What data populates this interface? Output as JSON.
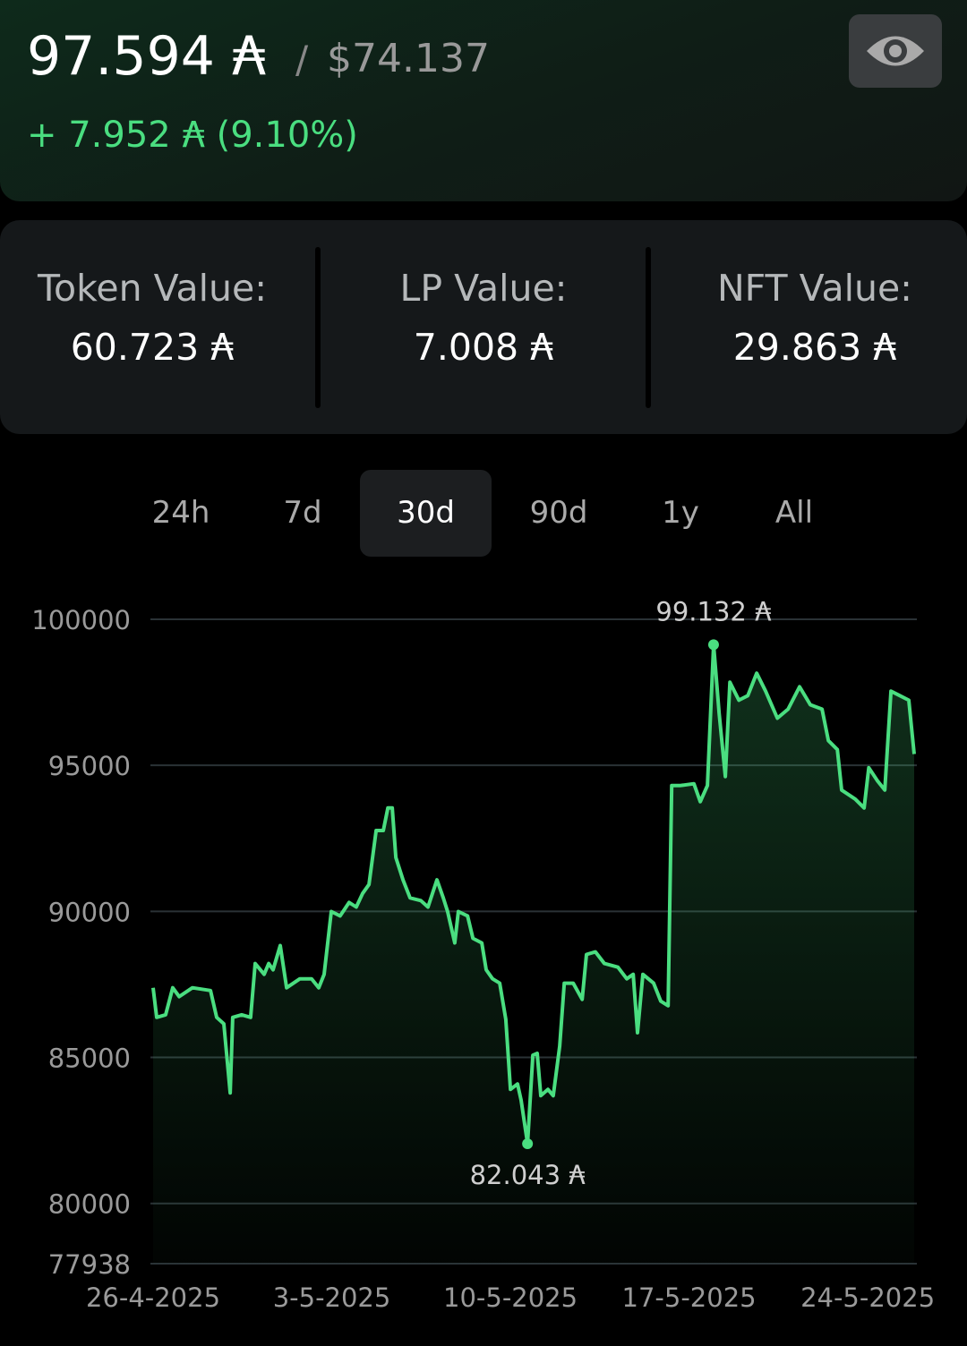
{
  "header": {
    "balance": "97.594 ₳",
    "separator": "/",
    "usd_value": "$74.137",
    "change": "+ 7.952 ₳ (9.10%)"
  },
  "stats": [
    {
      "label": "Token Value:",
      "value": "60.723 ₳"
    },
    {
      "label": "LP Value:",
      "value": "7.008 ₳"
    },
    {
      "label": "NFT Value:",
      "value": "29.863 ₳"
    }
  ],
  "tabs": {
    "items": [
      "24h",
      "7d",
      "30d",
      "90d",
      "1y",
      "All"
    ],
    "selected": "30d"
  },
  "chart_data": {
    "type": "line",
    "x": [
      0,
      0.14,
      0.49,
      0.77,
      1.02,
      1.54,
      2.25,
      2.49,
      2.77,
      3.02,
      3.12,
      3.47,
      3.82,
      4.0,
      4.35,
      4.53,
      4.7,
      4.98,
      5.23,
      5.75,
      6.21,
      6.49,
      6.7,
      6.98,
      7.33,
      7.68,
      7.96,
      8.21,
      8.46,
      8.74,
      9.02,
      9.2,
      9.37,
      9.51,
      9.79,
      10.07,
      10.49,
      10.77,
      11.12,
      11.37,
      11.54,
      11.82,
      11.96,
      12.32,
      12.53,
      12.88,
      13.05,
      13.3,
      13.58,
      13.82,
      14.0,
      14.28,
      14.42,
      14.67,
      14.88,
      15.05,
      15.19,
      15.47,
      15.68,
      15.93,
      16.11,
      16.46,
      16.81,
      16.98,
      17.33,
      17.68,
      18.21,
      18.56,
      18.81,
      18.98,
      19.19,
      19.61,
      19.89,
      20.18,
      20.32,
      20.67,
      21.19,
      21.44,
      21.72,
      21.96,
      22.18,
      22.42,
      22.6,
      22.95,
      23.3,
      23.65,
      24.0,
      24.46,
      24.88,
      25.33,
      25.75,
      26.21,
      26.46,
      26.81,
      26.98,
      27.51,
      27.86,
      28.04,
      28.39,
      28.67,
      28.91,
      29.26,
      29.61,
      29.82
    ],
    "series": [
      {
        "color": "#4ade80",
        "values": [
          87385,
          86370,
          86460,
          87385,
          87080,
          87385,
          87290,
          86370,
          86150,
          83785,
          86370,
          86460,
          86370,
          88215,
          87845,
          88215,
          88000,
          88830,
          87385,
          87690,
          87690,
          87385,
          87845,
          89995,
          89845,
          90305,
          90150,
          90615,
          90920,
          92770,
          92770,
          93540,
          93540,
          91845,
          91080,
          90460,
          90370,
          90150,
          91080,
          90460,
          89995,
          88920,
          89995,
          89845,
          89075,
          88920,
          88000,
          87690,
          87540,
          86305,
          83905,
          84090,
          83535,
          82043,
          85075,
          85140,
          83690,
          83905,
          83690,
          85385,
          87540,
          87540,
          86985,
          88525,
          88615,
          88215,
          88090,
          87690,
          87845,
          85845,
          87845,
          87540,
          86925,
          86770,
          94310,
          94310,
          94370,
          93755,
          94310,
          99132,
          96770,
          94615,
          97845,
          97230,
          97385,
          98155,
          97540,
          96615,
          96925,
          97690,
          97075,
          96925,
          95845,
          95540,
          94155,
          93845,
          93540,
          94920,
          94460,
          94155,
          97540,
          97385,
          97230,
          95385
        ]
      }
    ],
    "xlim": [
      0,
      29.82
    ],
    "xticks": [
      {
        "value": 0,
        "label": "26-4-2025"
      },
      {
        "value": 7,
        "label": "3-5-2025"
      },
      {
        "value": 14,
        "label": "10-5-2025"
      },
      {
        "value": 21,
        "label": "17-5-2025"
      },
      {
        "value": 28,
        "label": "24-5-2025"
      }
    ],
    "ylim": [
      77938,
      100000
    ],
    "yticks": [
      77938,
      80000,
      85000,
      90000,
      95000,
      100000
    ],
    "grid": true,
    "annotations": [
      {
        "label": "99.132 ₳",
        "x": 21.96,
        "y": 99132,
        "position": "above"
      },
      {
        "label": "82.043 ₳",
        "x": 14.67,
        "y": 82043,
        "position": "below"
      }
    ]
  }
}
